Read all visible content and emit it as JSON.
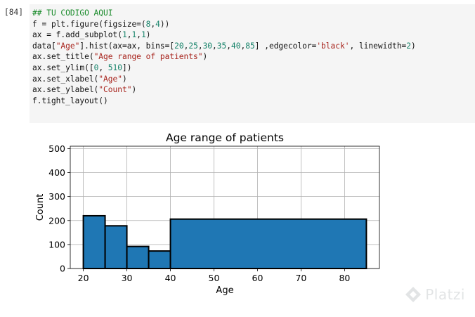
{
  "cell": {
    "prompt": "[84]",
    "code_lines": [
      [
        {
          "t": "## TU CODIGO AQUI",
          "c": "cm"
        }
      ],
      [
        {
          "t": "f = plt.figure(figsize=(",
          "c": ""
        },
        {
          "t": "8",
          "c": "num"
        },
        {
          "t": ",",
          "c": ""
        },
        {
          "t": "4",
          "c": "num"
        },
        {
          "t": "))",
          "c": ""
        }
      ],
      [
        {
          "t": "ax = f.add_subplot(",
          "c": ""
        },
        {
          "t": "1",
          "c": "num"
        },
        {
          "t": ",",
          "c": ""
        },
        {
          "t": "1",
          "c": "num"
        },
        {
          "t": ",",
          "c": ""
        },
        {
          "t": "1",
          "c": "num"
        },
        {
          "t": ")",
          "c": ""
        }
      ],
      [
        {
          "t": "data[",
          "c": ""
        },
        {
          "t": "\"Age\"",
          "c": "str"
        },
        {
          "t": "].hist(ax=ax, bins=[",
          "c": ""
        },
        {
          "t": "20",
          "c": "num"
        },
        {
          "t": ",",
          "c": ""
        },
        {
          "t": "25",
          "c": "num"
        },
        {
          "t": ",",
          "c": ""
        },
        {
          "t": "30",
          "c": "num"
        },
        {
          "t": ",",
          "c": ""
        },
        {
          "t": "35",
          "c": "num"
        },
        {
          "t": ",",
          "c": ""
        },
        {
          "t": "40",
          "c": "num"
        },
        {
          "t": ",",
          "c": ""
        },
        {
          "t": "85",
          "c": "num"
        },
        {
          "t": "] ,edgecolor=",
          "c": ""
        },
        {
          "t": "'black'",
          "c": "str"
        },
        {
          "t": ", linewidth=",
          "c": ""
        },
        {
          "t": "2",
          "c": "num"
        },
        {
          "t": ")",
          "c": ""
        }
      ],
      [
        {
          "t": "ax.set_title(",
          "c": ""
        },
        {
          "t": "\"Age range of patients\"",
          "c": "str"
        },
        {
          "t": ")",
          "c": ""
        }
      ],
      [
        {
          "t": "ax.set_ylim([",
          "c": ""
        },
        {
          "t": "0",
          "c": "num"
        },
        {
          "t": ", ",
          "c": ""
        },
        {
          "t": "510",
          "c": "num"
        },
        {
          "t": "])",
          "c": ""
        }
      ],
      [
        {
          "t": "ax.set_xlabel(",
          "c": ""
        },
        {
          "t": "\"Age\"",
          "c": "str"
        },
        {
          "t": ")",
          "c": ""
        }
      ],
      [
        {
          "t": "ax.set_ylabel(",
          "c": ""
        },
        {
          "t": "\"Count\"",
          "c": "str"
        },
        {
          "t": ")",
          "c": ""
        }
      ],
      [
        {
          "t": "f.tight_layout()",
          "c": ""
        }
      ]
    ]
  },
  "chart_data": {
    "type": "bar",
    "title": "Age range of patients",
    "xlabel": "Age",
    "ylabel": "Count",
    "bins": [
      [
        20,
        25
      ],
      [
        25,
        30
      ],
      [
        30,
        35
      ],
      [
        35,
        40
      ],
      [
        40,
        85
      ]
    ],
    "values": [
      220,
      178,
      92,
      73,
      206
    ],
    "xlim": [
      17,
      88
    ],
    "ylim": [
      0,
      510
    ],
    "xticks": [
      20,
      30,
      40,
      50,
      60,
      70,
      80
    ],
    "yticks": [
      0,
      100,
      200,
      300,
      400,
      500
    ],
    "grid": true,
    "bar_color": "#1f77b4",
    "edge_color": "#000000"
  },
  "watermark": {
    "text": "Platzi",
    "icon": "platzi-logo-icon"
  }
}
